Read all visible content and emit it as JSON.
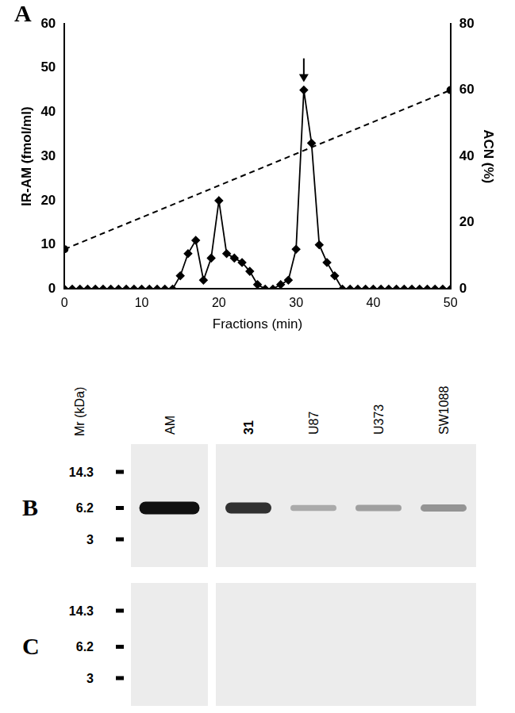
{
  "chart_data": {
    "type": "line",
    "panel_label": "A",
    "x_label": "Fractions (min)",
    "y_label": "IR-AM (fmol/ml)",
    "y2_label": "ACN (%)",
    "xlim": [
      0,
      50
    ],
    "xticks": [
      0,
      10,
      20,
      30,
      40,
      50
    ],
    "ylim": [
      0,
      60
    ],
    "yticks": [
      0,
      10,
      20,
      30,
      40,
      50,
      60
    ],
    "y2lim": [
      0,
      80
    ],
    "y2ticks": [
      0,
      20,
      40,
      60,
      80
    ],
    "grid": false,
    "series": [
      {
        "x": [
          0,
          1,
          2,
          3,
          4,
          5,
          6,
          7,
          8,
          9,
          10,
          11,
          12,
          13,
          14,
          15,
          16,
          17,
          18,
          19,
          20,
          21,
          22,
          23,
          24,
          25,
          26,
          27,
          28,
          29,
          30,
          31,
          32,
          33,
          34,
          35,
          36,
          37,
          38,
          39,
          40,
          41,
          42,
          43,
          44,
          45,
          46,
          47,
          48,
          49,
          50
        ],
        "values": [
          0,
          0,
          0,
          0,
          0,
          0,
          0,
          0,
          0,
          0,
          0,
          0,
          0,
          0,
          0,
          3,
          8,
          11,
          2,
          7,
          20,
          8,
          7,
          6,
          4,
          1,
          0,
          0,
          1,
          2,
          9,
          45,
          33,
          10,
          6,
          3,
          0,
          0,
          0,
          0,
          0,
          0,
          0,
          0,
          0,
          0,
          0,
          0,
          0,
          0,
          0
        ],
        "color": "#000000",
        "marker": "diamond",
        "line_style": "solid"
      },
      {
        "x": [
          0,
          50
        ],
        "values": [
          12,
          60
        ],
        "color": "#000000",
        "marker": "circle",
        "line_style": "dashed",
        "axis": "y2"
      }
    ],
    "annotations": [
      {
        "type": "arrow",
        "x": 31
      }
    ]
  },
  "blots": {
    "mr_label": "Mr (kDa)",
    "lanes": [
      "AM",
      "31",
      "U87",
      "U373",
      "SW1088"
    ],
    "markers": [
      14.3,
      6.2,
      3
    ],
    "band_kda": 6.2,
    "panels": [
      {
        "label": "B",
        "band_intensity": [
          1,
          0.85,
          0.3,
          0.35,
          0.4
        ]
      },
      {
        "label": "C",
        "band_intensity": [
          0,
          0,
          0,
          0,
          0
        ]
      }
    ]
  }
}
